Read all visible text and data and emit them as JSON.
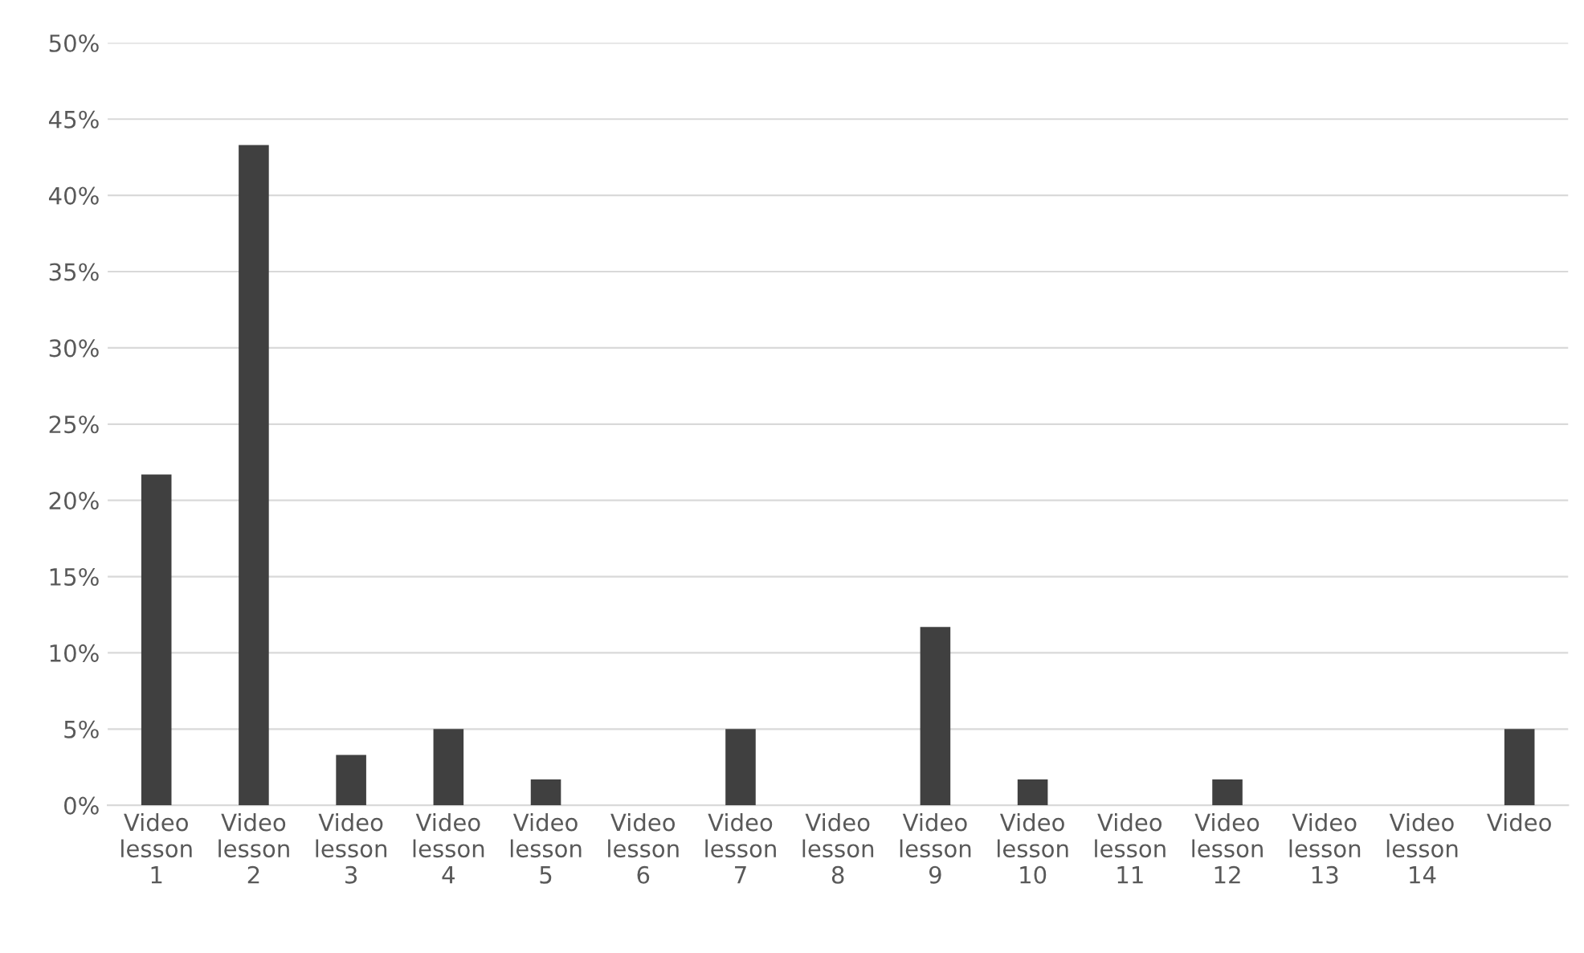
{
  "chart_data": {
    "type": "bar",
    "categories": [
      "Video\nlesson\n1",
      "Video\nlesson\n2",
      "Video\nlesson\n3",
      "Video\nlesson\n4",
      "Video\nlesson\n5",
      "Video\nlesson\n6",
      "Video\nlesson\n7",
      "Video\nlesson\n8",
      "Video\nlesson\n9",
      "Video\nlesson\n10",
      "Video\nlesson\n11",
      "Video\nlesson\n12",
      "Video\nlesson\n13",
      "Video\nlesson\n14",
      "Video"
    ],
    "values": [
      21.7,
      43.3,
      3.3,
      5,
      1.7,
      0,
      5,
      0,
      11.7,
      1.7,
      0,
      1.7,
      0,
      0,
      5
    ],
    "color": "#404040",
    "ylim": [
      0,
      50
    ],
    "yticks": [
      {
        "value": 0,
        "label": "0%"
      },
      {
        "value": 5,
        "label": "5%"
      },
      {
        "value": 10,
        "label": "10%"
      },
      {
        "value": 15,
        "label": "15%"
      },
      {
        "value": 20,
        "label": "20%"
      },
      {
        "value": 25,
        "label": "25%"
      },
      {
        "value": 30,
        "label": "30%"
      },
      {
        "value": 35,
        "label": "35%"
      },
      {
        "value": 40,
        "label": "40%"
      },
      {
        "value": 45,
        "label": "45%"
      },
      {
        "value": 50,
        "label": "50%"
      }
    ],
    "grid": "y"
  }
}
